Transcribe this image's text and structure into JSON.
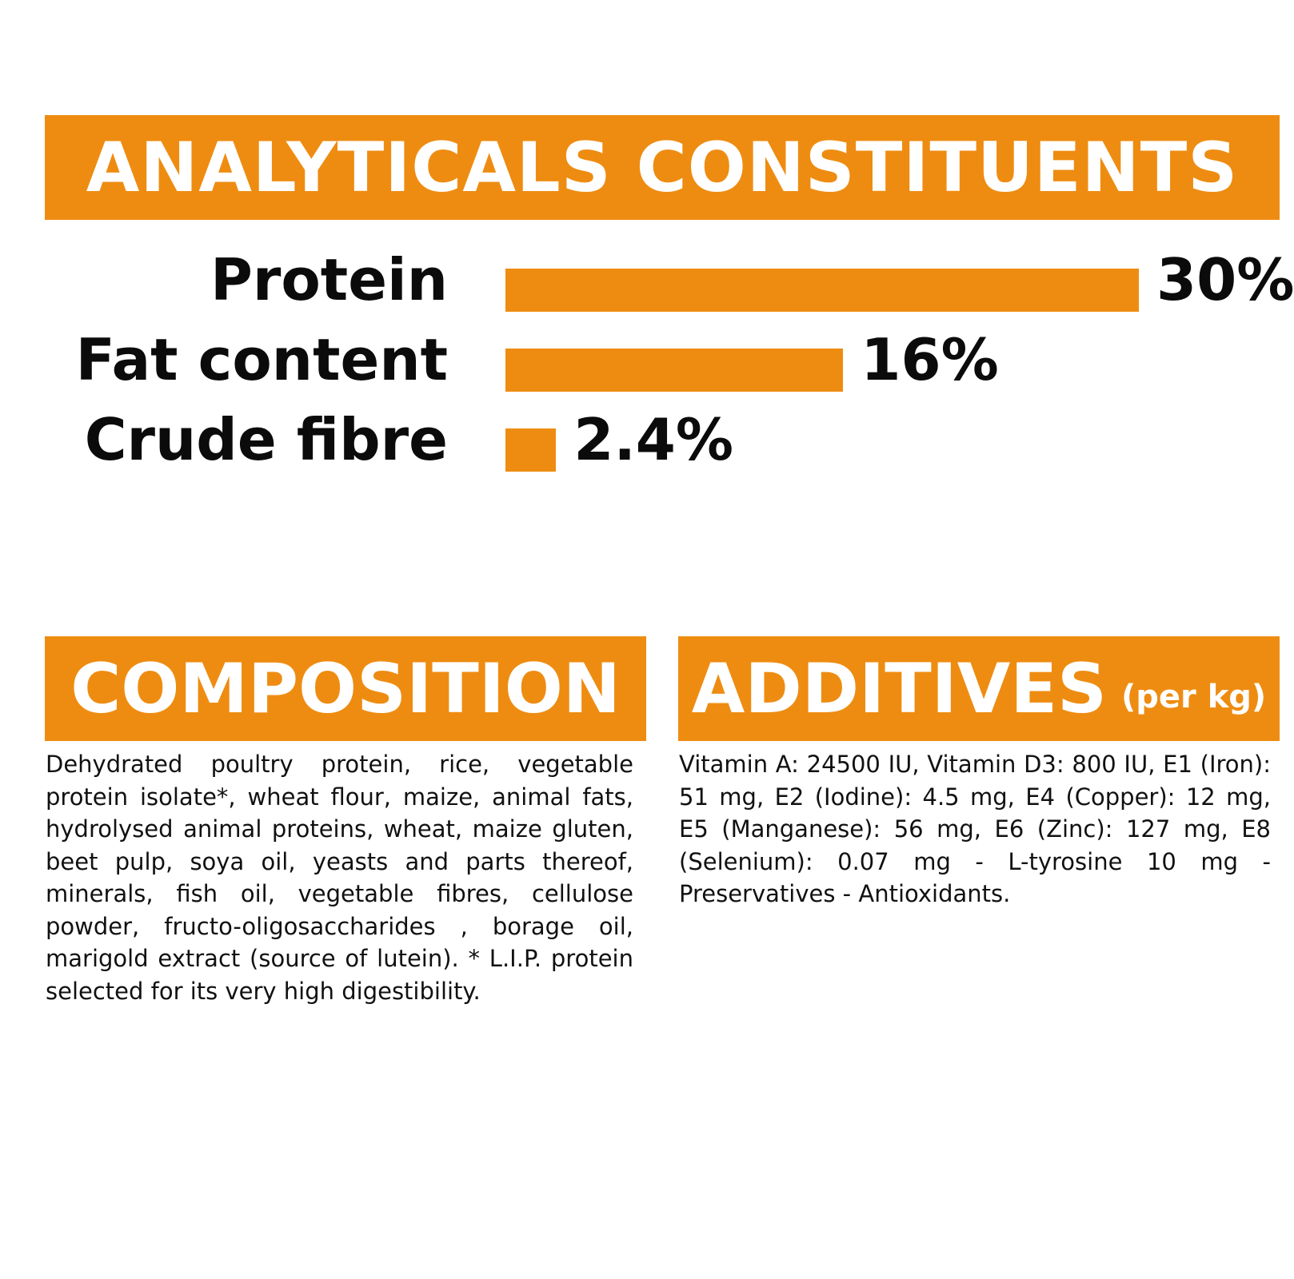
{
  "analytics": {
    "title": "ANALYTICALS CONSTITUENTS"
  },
  "chart_data": {
    "type": "bar",
    "orientation": "horizontal",
    "categories": [
      "Protein",
      "Fat content",
      "Crude fibre"
    ],
    "values": [
      30,
      16,
      2.4
    ],
    "value_labels": [
      "30%",
      "16%",
      "2.4%"
    ],
    "unit": "%",
    "xlim": [
      0,
      30
    ],
    "grid": false,
    "bar_color": "#ee8c11"
  },
  "composition": {
    "title": "COMPOSITION",
    "text": "Dehydrated poultry protein, rice, vegetable protein isolate*, wheat flour, maize, animal fats, hydrolysed animal proteins, wheat, maize gluten, beet pulp, soya oil, yeasts and parts thereof, minerals, fish oil, vegetable fibres, cellulose powder, fructo-oligosaccharides , borage oil, marigold extract (source of lutein). * L.I.P. protein selected for its very high digestibility."
  },
  "additives": {
    "title": "ADDITIVES",
    "title_suffix": "(per kg)",
    "text": "Vitamin A: 24500 IU, Vitamin D3: 800 IU, E1 (Iron): 51 mg, E2 (Iodine): 4.5 mg, E4 (Copper): 12 mg, E5 (Manganese): 56 mg, E6 (Zinc): 127 mg, E8 (Selenium): 0.07 mg - L-tyrosine 10 mg - Preservatives - Antioxidants."
  },
  "colors": {
    "accent": "#ee8c11",
    "text": "#0b0b0b",
    "banner_text": "#ffffff"
  }
}
